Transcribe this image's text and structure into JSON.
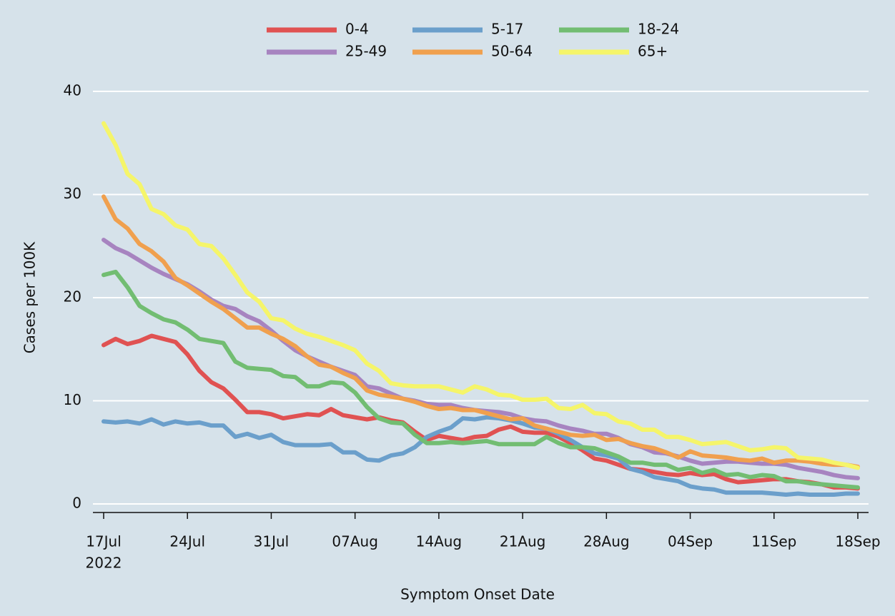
{
  "chart_data": {
    "type": "line",
    "x_label": "Symptom Onset Date",
    "y_label": "Cases per 100K",
    "x": [
      "2022-07-17",
      "2022-07-18",
      "2022-07-19",
      "2022-07-20",
      "2022-07-21",
      "2022-07-22",
      "2022-07-23",
      "2022-07-24",
      "2022-07-25",
      "2022-07-26",
      "2022-07-27",
      "2022-07-28",
      "2022-07-29",
      "2022-07-30",
      "2022-07-31",
      "2022-08-01",
      "2022-08-02",
      "2022-08-03",
      "2022-08-04",
      "2022-08-05",
      "2022-08-06",
      "2022-08-07",
      "2022-08-08",
      "2022-08-09",
      "2022-08-10",
      "2022-08-11",
      "2022-08-12",
      "2022-08-13",
      "2022-08-14",
      "2022-08-15",
      "2022-08-16",
      "2022-08-17",
      "2022-08-18",
      "2022-08-19",
      "2022-08-20",
      "2022-08-21",
      "2022-08-22",
      "2022-08-23",
      "2022-08-24",
      "2022-08-25",
      "2022-08-26",
      "2022-08-27",
      "2022-08-28",
      "2022-08-29",
      "2022-08-30",
      "2022-08-31",
      "2022-09-01",
      "2022-09-02",
      "2022-09-03",
      "2022-09-04",
      "2022-09-05",
      "2022-09-06",
      "2022-09-07",
      "2022-09-08",
      "2022-09-09",
      "2022-09-10",
      "2022-09-11",
      "2022-09-12",
      "2022-09-13",
      "2022-09-14",
      "2022-09-15",
      "2022-09-16",
      "2022-09-17",
      "2022-09-18"
    ],
    "series": [
      {
        "name": "0-4",
        "color": "#e05252",
        "values": [
          15.4,
          16.0,
          15.5,
          15.8,
          16.3,
          16.0,
          15.7,
          14.5,
          12.9,
          11.8,
          11.2,
          10.1,
          8.9,
          8.9,
          8.7,
          8.3,
          8.5,
          8.7,
          8.6,
          9.2,
          8.6,
          8.4,
          8.2,
          8.4,
          8.1,
          7.9,
          7.0,
          6.2,
          6.6,
          6.4,
          6.2,
          6.5,
          6.6,
          7.2,
          7.5,
          7.0,
          6.9,
          6.9,
          6.5,
          5.9,
          5.2,
          4.4,
          4.2,
          3.8,
          3.4,
          3.3,
          3.1,
          2.9,
          2.8,
          3.0,
          2.8,
          2.9,
          2.4,
          2.1,
          2.2,
          2.3,
          2.4,
          2.4,
          2.2,
          2.1,
          1.9,
          1.6,
          1.6,
          1.5
        ]
      },
      {
        "name": "5-17",
        "color": "#6b9fcb",
        "values": [
          8.0,
          7.9,
          8.0,
          7.8,
          8.2,
          7.7,
          8.0,
          7.8,
          7.9,
          7.6,
          7.6,
          6.5,
          6.8,
          6.4,
          6.7,
          6.0,
          5.7,
          5.7,
          5.7,
          5.8,
          5.0,
          5.0,
          4.3,
          4.2,
          4.7,
          4.9,
          5.5,
          6.5,
          7.0,
          7.4,
          8.3,
          8.2,
          8.4,
          8.3,
          8.1,
          7.8,
          7.4,
          7.3,
          6.8,
          6.2,
          5.5,
          4.9,
          4.7,
          4.4,
          3.4,
          3.1,
          2.6,
          2.4,
          2.2,
          1.7,
          1.5,
          1.4,
          1.1,
          1.1,
          1.1,
          1.1,
          1.0,
          0.9,
          1.0,
          0.9,
          0.9,
          0.9,
          1.0,
          1.0
        ]
      },
      {
        "name": "18-24",
        "color": "#72bd72",
        "values": [
          22.2,
          22.5,
          21.0,
          19.2,
          18.5,
          17.9,
          17.6,
          16.9,
          16.0,
          15.8,
          15.6,
          13.8,
          13.2,
          13.1,
          13.0,
          12.4,
          12.3,
          11.4,
          11.4,
          11.8,
          11.7,
          10.8,
          9.4,
          8.3,
          7.9,
          7.8,
          6.7,
          5.9,
          5.9,
          6.0,
          5.9,
          6.0,
          6.1,
          5.8,
          5.8,
          5.8,
          5.8,
          6.5,
          5.9,
          5.5,
          5.5,
          5.4,
          5.0,
          4.6,
          4.0,
          4.0,
          3.8,
          3.8,
          3.3,
          3.5,
          3.0,
          3.3,
          2.8,
          2.9,
          2.6,
          2.8,
          2.7,
          2.2,
          2.2,
          2.0,
          1.9,
          1.8,
          1.7,
          1.6
        ]
      },
      {
        "name": "25-49",
        "color": "#a784c0",
        "values": [
          25.6,
          24.8,
          24.3,
          23.6,
          22.9,
          22.3,
          21.8,
          21.3,
          20.6,
          19.8,
          19.2,
          18.9,
          18.2,
          17.7,
          16.8,
          15.8,
          14.9,
          14.3,
          13.8,
          13.3,
          12.9,
          12.5,
          11.4,
          11.2,
          10.7,
          10.2,
          10.0,
          9.7,
          9.6,
          9.6,
          9.3,
          9.1,
          9.0,
          8.9,
          8.7,
          8.3,
          8.1,
          8.0,
          7.6,
          7.3,
          7.1,
          6.8,
          6.8,
          6.4,
          5.8,
          5.5,
          5.0,
          4.9,
          4.6,
          4.2,
          3.9,
          4.0,
          4.1,
          4.1,
          4.0,
          3.9,
          3.9,
          3.8,
          3.5,
          3.3,
          3.1,
          2.8,
          2.6,
          2.5
        ]
      },
      {
        "name": "50-64",
        "color": "#f0a04e",
        "values": [
          29.8,
          27.6,
          26.7,
          25.2,
          24.5,
          23.5,
          21.9,
          21.2,
          20.4,
          19.6,
          18.9,
          18.0,
          17.1,
          17.1,
          16.5,
          16.0,
          15.3,
          14.3,
          13.5,
          13.3,
          12.7,
          12.2,
          11.0,
          10.6,
          10.4,
          10.2,
          9.9,
          9.5,
          9.2,
          9.3,
          9.1,
          9.1,
          8.8,
          8.5,
          8.2,
          8.3,
          7.6,
          7.3,
          7.0,
          6.7,
          6.6,
          6.7,
          6.2,
          6.3,
          5.9,
          5.6,
          5.4,
          5.0,
          4.5,
          5.1,
          4.7,
          4.6,
          4.5,
          4.3,
          4.2,
          4.4,
          4.0,
          4.2,
          4.2,
          4.1,
          3.9,
          3.8,
          3.8,
          3.6
        ]
      },
      {
        "name": "65+",
        "color": "#f5f56a",
        "values": [
          36.9,
          34.8,
          32.0,
          31.0,
          28.6,
          28.1,
          27.0,
          26.6,
          25.2,
          25.0,
          23.8,
          22.2,
          20.5,
          19.6,
          18.0,
          17.8,
          17.0,
          16.5,
          16.2,
          15.8,
          15.4,
          14.9,
          13.6,
          12.9,
          11.7,
          11.5,
          11.4,
          11.4,
          11.4,
          11.1,
          10.8,
          11.4,
          11.1,
          10.6,
          10.5,
          10.1,
          10.1,
          10.2,
          9.3,
          9.2,
          9.6,
          8.8,
          8.7,
          8.0,
          7.8,
          7.2,
          7.2,
          6.5,
          6.5,
          6.2,
          5.8,
          5.9,
          6.0,
          5.6,
          5.2,
          5.3,
          5.5,
          5.4,
          4.5,
          4.4,
          4.3,
          4.0,
          3.8,
          3.5
        ]
      }
    ],
    "xlim": [
      "2022-07-17",
      "2022-09-18"
    ],
    "xticks": [
      {
        "value": "2022-07-17",
        "label": "17Jul"
      },
      {
        "value": "2022-07-24",
        "label": "24Jul"
      },
      {
        "value": "2022-07-31",
        "label": "31Jul"
      },
      {
        "value": "2022-08-07",
        "label": "07Aug"
      },
      {
        "value": "2022-08-14",
        "label": "14Aug"
      },
      {
        "value": "2022-08-21",
        "label": "21Aug"
      },
      {
        "value": "2022-08-28",
        "label": "28Aug"
      },
      {
        "value": "2022-09-04",
        "label": "04Sep"
      },
      {
        "value": "2022-09-11",
        "label": "11Sep"
      },
      {
        "value": "2022-09-18",
        "label": "18Sep"
      }
    ],
    "xtick_year": "2022",
    "ylim": [
      0,
      40
    ],
    "yticks": [
      0,
      10,
      20,
      30,
      40
    ],
    "grid": true,
    "legend": "top"
  }
}
